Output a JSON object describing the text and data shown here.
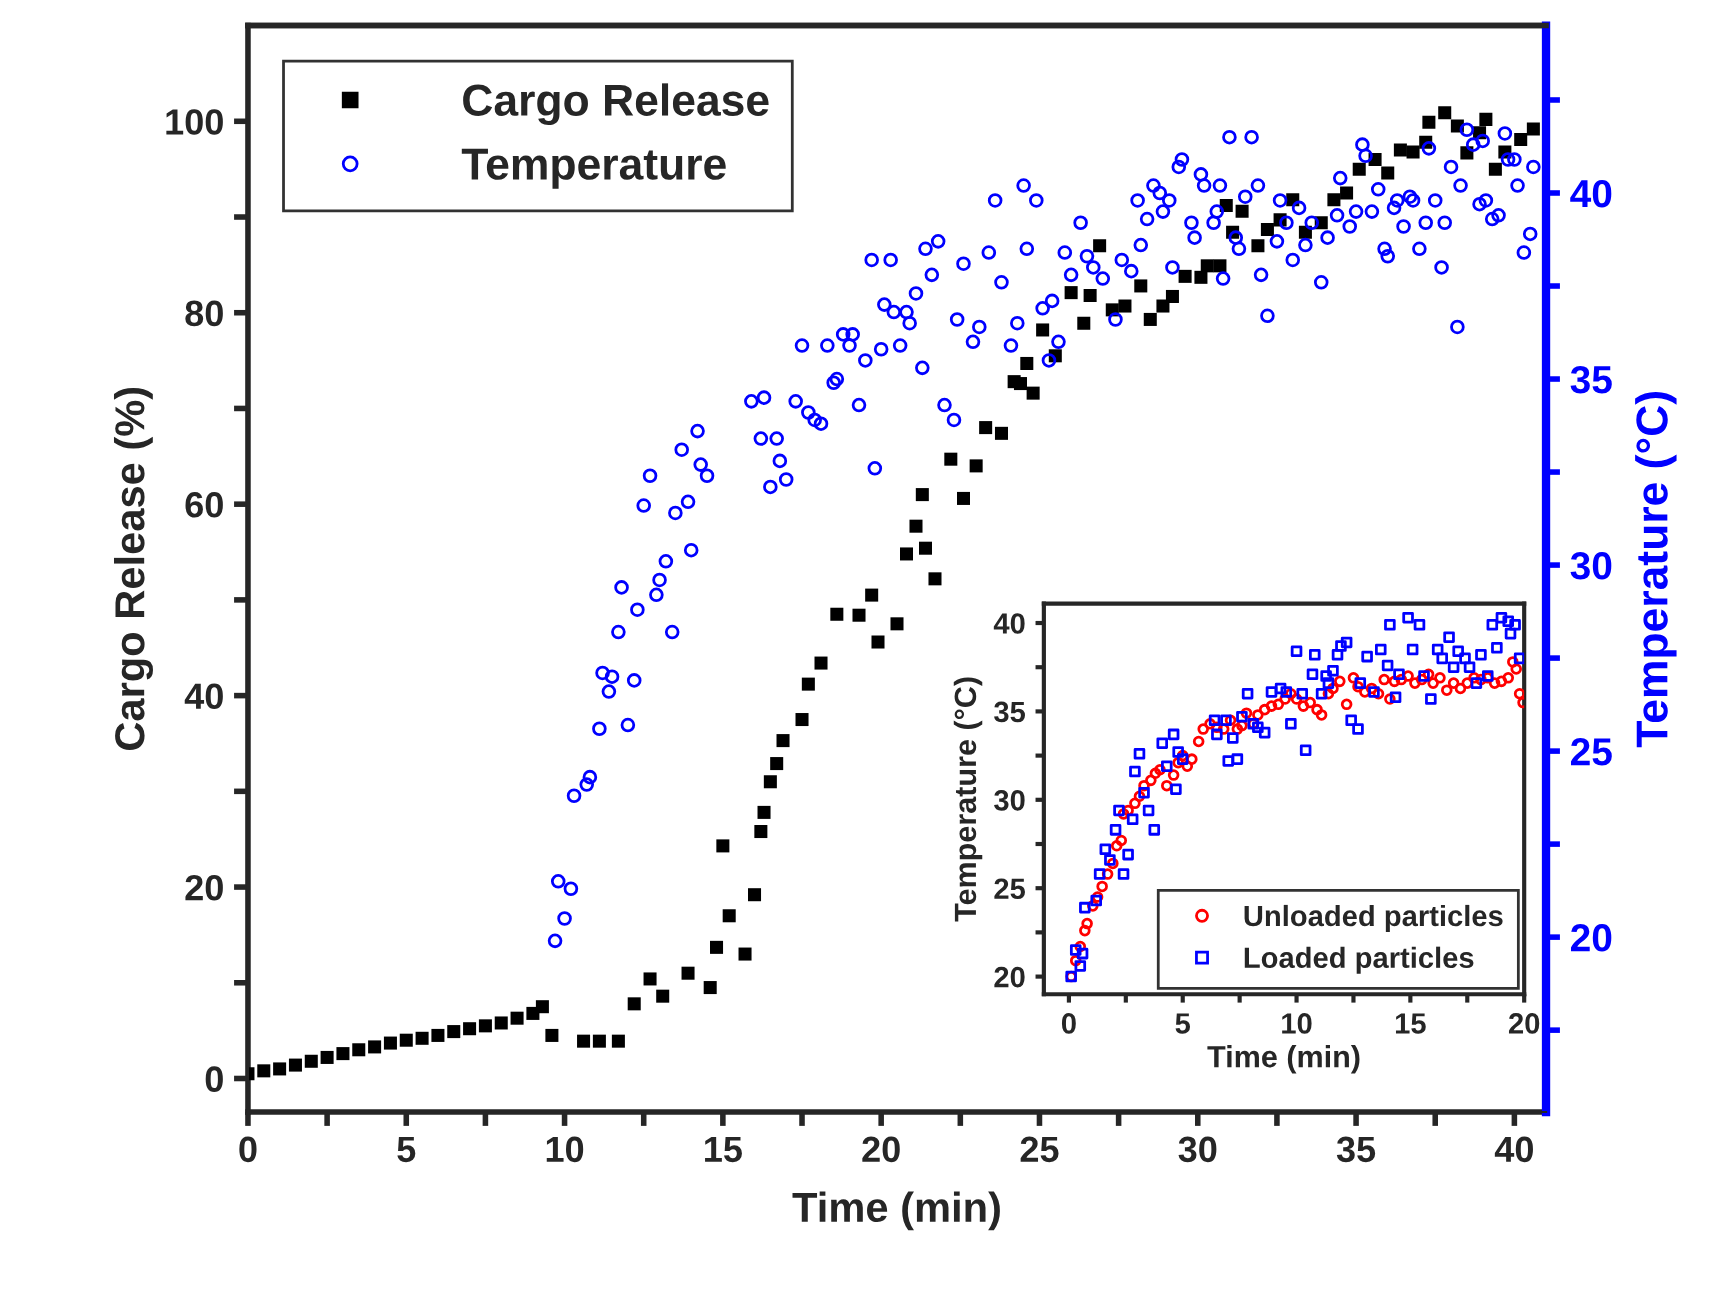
{
  "chart_data": [
    {
      "type": "scatter",
      "xlabel": "Time (min)",
      "ylabel": "Cargo Release (%)",
      "y2label": "Temperature (°C)",
      "legend": "top left",
      "grid": false,
      "xlim": [
        0,
        41
      ],
      "xticks": [
        0,
        {
          "value": 2.5,
          "label": null
        },
        5,
        {
          "value": 7.5,
          "label": null
        },
        10,
        {
          "value": 12.5,
          "label": null
        },
        15,
        {
          "value": 17.5,
          "label": null
        },
        20,
        {
          "value": 22.5,
          "label": null
        },
        25,
        {
          "value": 27.5,
          "label": null
        },
        30,
        {
          "value": 32.5,
          "label": null
        },
        35,
        {
          "value": 37.5,
          "label": null
        },
        40
      ],
      "ylim": [
        -3.5,
        110
      ],
      "yticks": [
        0,
        {
          "value": 10,
          "label": null
        },
        20,
        {
          "value": 30,
          "label": null
        },
        40,
        {
          "value": 50,
          "label": null
        },
        60,
        {
          "value": 70,
          "label": null
        },
        80,
        {
          "value": 90,
          "label": null
        },
        100
      ],
      "y2lim": [
        15.3,
        44.5
      ],
      "y2ticks": [
        {
          "value": 17.5,
          "label": null
        },
        20,
        {
          "value": 22.5,
          "label": null
        },
        25,
        {
          "value": 27.5,
          "label": null
        },
        30,
        {
          "value": 32.5,
          "label": null
        },
        35,
        {
          "value": 37.5,
          "label": null
        },
        40,
        {
          "value": 42.5,
          "label": null
        }
      ],
      "series": [
        {
          "name": "Cargo Release",
          "color": "#000000",
          "marker": "square",
          "x": [
            0,
            0.5,
            1,
            1.5,
            2,
            2.5,
            3,
            3.5,
            4,
            4.5,
            5,
            5.5,
            6,
            6.5,
            7,
            7.5,
            8,
            8.5,
            9,
            9.3,
            9.6,
            10.6,
            11.1,
            11.7,
            12.2,
            12.7,
            13.1,
            13.9,
            14.6,
            14.8,
            15.0,
            15.2,
            15.7,
            16.0,
            16.2,
            16.3,
            16.5,
            16.7,
            16.9,
            17.5,
            17.7,
            18.1,
            18.6,
            19.3,
            19.7,
            19.9,
            20.5,
            20.8,
            21.1,
            21.3,
            21.4,
            21.7,
            22.2,
            22.6,
            23.0,
            23.3,
            23.8,
            24.2,
            24.4,
            24.6,
            24.8,
            25.1,
            25.5,
            26.0,
            26.4,
            26.6,
            26.9,
            27.3,
            27.7,
            28.2,
            28.5,
            28.9,
            29.2,
            29.6,
            30.1,
            30.3,
            30.7,
            30.9,
            31.1,
            31.4,
            31.9,
            32.2,
            32.6,
            33.0,
            33.4,
            33.9,
            34.3,
            34.7,
            35.1,
            35.6,
            36.0,
            36.4,
            36.8,
            37.2,
            37.3,
            37.8,
            38.2,
            38.5,
            38.9,
            39.1,
            39.4,
            39.7,
            40.2,
            40.6
          ],
          "values": [
            0.5,
            0.8,
            1,
            1.4,
            1.8,
            2.2,
            2.6,
            3,
            3.3,
            3.7,
            4,
            4.2,
            4.5,
            4.9,
            5.2,
            5.5,
            5.8,
            6.3,
            6.8,
            7.5,
            4.5,
            3.9,
            3.9,
            3.9,
            7.8,
            10.4,
            8.6,
            11,
            9.5,
            13.7,
            24.3,
            17,
            13,
            19.2,
            25.8,
            27.8,
            31,
            32.9,
            35.3,
            37.5,
            41.2,
            43.4,
            48.5,
            48.4,
            50.5,
            45.6,
            47.5,
            54.8,
            57.7,
            61,
            55.4,
            52.2,
            64.7,
            60.6,
            64,
            68,
            67.4,
            72.8,
            72.6,
            74.7,
            71.6,
            78.2,
            75.5,
            82.1,
            78.9,
            81.8,
            87,
            80.3,
            80.7,
            82.8,
            79.3,
            80.7,
            81.7,
            83.8,
            83.7,
            84.9,
            84.9,
            91.2,
            88.4,
            90.6,
            87,
            88.7,
            89.7,
            91.8,
            88.4,
            89.4,
            91.8,
            92.5,
            95,
            96,
            94.6,
            97,
            96.8,
            97.8,
            99.9,
            100.9,
            99.5,
            96.7,
            98.8,
            100.2,
            95,
            96.8,
            98.1,
            99.2
          ]
        },
        {
          "name": "Temperature",
          "color": "#0000ff",
          "marker": "circle",
          "axis": "y2",
          "x": [
            9.7,
            9.8,
            10.0,
            10.2,
            10.3,
            10.7,
            10.8,
            11.1,
            11.2,
            11.4,
            11.5,
            11.7,
            11.8,
            12.0,
            12.2,
            12.3,
            12.5,
            12.7,
            12.9,
            13.0,
            13.2,
            13.4,
            13.5,
            13.7,
            13.9,
            14.0,
            14.2,
            14.3,
            14.5,
            15.9,
            16.3,
            16.2,
            16.7,
            16.5,
            16.8,
            17.0,
            17.3,
            17.7,
            17.9,
            18.1,
            17.5,
            18.3,
            18.5,
            18.6,
            18.8,
            19.0,
            19.1,
            19.3,
            19.5,
            19.7,
            19.8,
            20.0,
            20.1,
            20.3,
            20.4,
            20.6,
            20.8,
            20.9,
            21.1,
            21.3,
            21.4,
            21.6,
            21.8,
            22.0,
            22.3,
            22.4,
            22.6,
            22.9,
            23.1,
            23.4,
            23.6,
            23.8,
            24.1,
            24.3,
            24.5,
            24.6,
            24.9,
            25.1,
            25.4,
            25.3,
            25.6,
            25.8,
            26.0,
            26.3,
            26.5,
            26.7,
            27.0,
            27.4,
            27.6,
            27.9,
            28.1,
            28.2,
            28.4,
            28.6,
            28.8,
            28.9,
            29.1,
            29.2,
            29.4,
            29.5,
            29.8,
            29.9,
            30.1,
            30.2,
            30.5,
            30.6,
            30.7,
            30.8,
            31.0,
            31.2,
            31.3,
            31.5,
            31.7,
            31.9,
            32.0,
            32.2,
            32.5,
            32.6,
            32.8,
            33.0,
            33.2,
            33.4,
            33.6,
            33.9,
            34.1,
            34.4,
            34.5,
            34.8,
            35.0,
            35.2,
            35.3,
            35.5,
            35.7,
            35.9,
            36.0,
            36.2,
            36.3,
            36.5,
            36.7,
            36.8,
            37.0,
            37.2,
            37.3,
            37.5,
            37.7,
            37.8,
            38.0,
            38.2,
            38.3,
            38.5,
            38.7,
            38.9,
            39.0,
            39.1,
            39.3,
            39.5,
            39.7,
            39.8,
            40.0,
            40.1,
            40.3,
            40.5,
            40.6
          ],
          "values": [
            19.9,
            21.5,
            20.5,
            21.3,
            23.8,
            24.1,
            24.3,
            25.6,
            27.1,
            26.6,
            27.0,
            28.2,
            29.4,
            25.7,
            26.9,
            28.8,
            31.6,
            32.4,
            29.2,
            29.6,
            30.1,
            28.2,
            31.4,
            33.1,
            31.7,
            30.4,
            33.6,
            32.7,
            32.4,
            34.4,
            34.5,
            33.4,
            33.4,
            32.1,
            32.8,
            32.3,
            34.4,
            34.1,
            33.9,
            33.8,
            35.9,
            35.9,
            34.9,
            35.0,
            36.2,
            35.9,
            36.2,
            34.3,
            35.5,
            38.2,
            32.6,
            35.8,
            37.0,
            38.2,
            36.8,
            35.9,
            36.8,
            36.5,
            37.3,
            35.3,
            38.5,
            37.8,
            38.7,
            34.3,
            33.9,
            36.6,
            38.1,
            36.0,
            36.4,
            38.4,
            39.8,
            37.6,
            35.9,
            36.5,
            40.2,
            38.5,
            39.8,
            36.9,
            37.1,
            35.5,
            36.0,
            38.4,
            37.8,
            39.2,
            38.3,
            38.0,
            37.7,
            36.6,
            38.2,
            37.9,
            39.8,
            38.6,
            39.3,
            40.2,
            40.0,
            39.5,
            39.8,
            38.0,
            40.7,
            40.9,
            39.2,
            38.8,
            40.5,
            40.2,
            39.2,
            39.5,
            40.2,
            37.7,
            41.5,
            38.8,
            38.5,
            39.9,
            41.5,
            40.2,
            37.8,
            36.7,
            38.7,
            39.8,
            39.2,
            38.2,
            39.6,
            38.6,
            39.2,
            37.6,
            38.8,
            39.4,
            40.4,
            39.1,
            39.5,
            41.3,
            41.0,
            39.5,
            40.1,
            38.5,
            38.3,
            39.6,
            39.8,
            39.1,
            39.9,
            39.8,
            38.5,
            39.2,
            41.2,
            39.8,
            38.0,
            39.2,
            40.7,
            36.4,
            40.2,
            41.7,
            41.3,
            39.7,
            41.4,
            39.8,
            39.3,
            39.4,
            41.6,
            40.9,
            40.9,
            40.2,
            38.4,
            38.9,
            40.7
          ]
        }
      ]
    },
    {
      "type": "scatter",
      "xlabel": "Time (min)",
      "ylabel": "Temperature (°C)",
      "legend": "bottom right",
      "grid": false,
      "xlim": [
        -1.1,
        20
      ],
      "xticks": [
        0,
        {
          "value": 2.5,
          "label": null
        },
        5,
        {
          "value": 7.5,
          "label": null
        },
        10,
        {
          "value": 12.5,
          "label": null
        },
        15,
        {
          "value": 17.5,
          "label": null
        },
        20
      ],
      "ylim": [
        19,
        41.1
      ],
      "yticks": [
        20,
        {
          "value": 22.5,
          "label": null
        },
        25,
        {
          "value": 27.5,
          "label": null
        },
        30,
        {
          "value": 32.5,
          "label": null
        },
        35,
        {
          "value": 37.5,
          "label": null
        },
        40
      ],
      "series": [
        {
          "name": "Unloaded particles",
          "color": "#ff0000",
          "marker": "circle",
          "x": [
            0.1,
            0.3,
            0.5,
            0.7,
            0.8,
            1.05,
            1.26,
            1.46,
            1.7,
            1.93,
            2.1,
            2.3,
            2.4,
            2.6,
            2.9,
            3.1,
            3.3,
            3.6,
            3.8,
            4.0,
            4.3,
            4.6,
            4.8,
            5.0,
            5.2,
            5.4,
            5.7,
            5.9,
            6.2,
            6.5,
            6.8,
            7.1,
            7.4,
            7.6,
            7.8,
            8.1,
            8.3,
            8.6,
            8.9,
            9.2,
            9.5,
            9.75,
            10.0,
            10.3,
            10.6,
            10.9,
            11.1,
            11.4,
            11.6,
            11.9,
            12.2,
            12.5,
            12.7,
            13.0,
            13.3,
            13.6,
            13.85,
            14.1,
            14.3,
            14.6,
            14.9,
            15.2,
            15.5,
            15.8,
            16.0,
            16.3,
            16.6,
            16.9,
            17.2,
            17.5,
            17.8,
            18.1,
            18.4,
            18.7,
            19.0,
            19.3,
            19.5,
            19.65,
            19.8,
            19.95
          ],
          "values": [
            20.0,
            20.9,
            21.7,
            22.6,
            23.0,
            24.0,
            24.5,
            25.1,
            25.8,
            26.4,
            27.4,
            27.7,
            29.2,
            29.4,
            29.8,
            30.2,
            30.8,
            31.1,
            31.5,
            31.7,
            30.8,
            31.4,
            32.1,
            32.5,
            31.9,
            32.3,
            33.3,
            34.0,
            34.3,
            34.1,
            34.0,
            34.5,
            34.0,
            34.2,
            34.9,
            34.3,
            34.8,
            35.1,
            35.3,
            35.4,
            35.7,
            36.0,
            35.7,
            35.3,
            35.5,
            35.1,
            34.8,
            36.0,
            36.3,
            36.7,
            35.4,
            36.9,
            36.4,
            36.1,
            36.3,
            36.0,
            36.8,
            35.7,
            36.7,
            36.8,
            37.0,
            36.6,
            36.8,
            37.1,
            36.6,
            36.9,
            36.2,
            36.6,
            36.3,
            36.6,
            36.9,
            36.8,
            36.9,
            36.6,
            36.7,
            36.9,
            37.8,
            37.4,
            36.0,
            35.5
          ]
        },
        {
          "name": "Loaded particles",
          "color": "#0000ff",
          "marker": "square",
          "x": [
            0.1,
            0.3,
            0.5,
            0.6,
            0.7,
            1.2,
            1.35,
            1.6,
            1.8,
            2.05,
            2.2,
            2.4,
            2.6,
            2.8,
            2.9,
            3.1,
            3.3,
            3.5,
            3.75,
            4.1,
            4.3,
            4.6,
            4.7,
            4.8,
            5.0,
            6.4,
            6.5,
            6.9,
            7.0,
            7.2,
            7.4,
            7.6,
            7.85,
            8.1,
            8.3,
            8.6,
            8.9,
            9.3,
            9.55,
            9.75,
            10.0,
            10.25,
            10.4,
            10.7,
            10.8,
            11.1,
            11.3,
            11.4,
            11.6,
            11.8,
            11.95,
            12.2,
            12.4,
            12.7,
            12.8,
            13.1,
            13.4,
            13.7,
            14.0,
            14.1,
            14.35,
            14.5,
            14.9,
            15.1,
            15.4,
            15.6,
            15.9,
            16.2,
            16.4,
            16.7,
            16.9,
            17.1,
            17.4,
            17.6,
            17.9,
            18.1,
            18.4,
            18.6,
            18.8,
            19.0,
            19.3,
            19.4,
            19.6,
            19.8
          ],
          "values": [
            20.0,
            21.5,
            20.6,
            21.3,
            23.9,
            24.3,
            25.8,
            27.2,
            26.6,
            28.3,
            29.4,
            25.8,
            26.9,
            28.9,
            31.6,
            32.6,
            30.4,
            29.4,
            28.3,
            33.2,
            31.9,
            33.7,
            30.6,
            32.7,
            32.3,
            34.5,
            33.7,
            34.5,
            32.2,
            33.5,
            32.3,
            34.7,
            36.0,
            34.3,
            34.1,
            33.8,
            36.1,
            36.3,
            36.1,
            34.3,
            38.4,
            36.0,
            32.8,
            37.1,
            38.2,
            36.0,
            37.0,
            36.6,
            37.3,
            38.2,
            38.7,
            38.9,
            34.5,
            34.0,
            36.6,
            38.1,
            36.1,
            38.5,
            37.6,
            39.9,
            35.8,
            37.1,
            40.3,
            38.5,
            39.9,
            37.0,
            35.7,
            38.5,
            38.0,
            39.2,
            37.5,
            38.4,
            38.0,
            37.5,
            36.6,
            38.2,
            37.0,
            39.9,
            38.6,
            40.3,
            40.1,
            39.4,
            39.9,
            38.0
          ]
        }
      ]
    }
  ]
}
